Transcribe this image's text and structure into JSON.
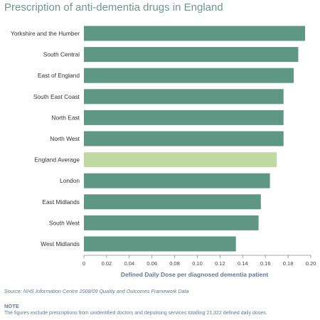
{
  "title": "Prescription of anti-dementia drugs in England",
  "source": "Source: NHS Information Centre 2008/09 Quality and Outcomes Framework Data",
  "note": {
    "heading": "NOTE",
    "text": "The figures exclude prescriptions from unidentified doctors and deputising services totalling 21,322 defined daily doses."
  },
  "colors": {
    "bar": "#5e9784",
    "highlight_bar": "#c0d8a2",
    "title": "#6b9690",
    "axis_label": "#5d7b95"
  },
  "chart_data": {
    "type": "bar",
    "orientation": "horizontal",
    "categories": [
      "Yorkshire and the Humber",
      "South Central",
      "East of England",
      "South East Coast",
      "North East",
      "North West",
      "England Average",
      "London",
      "East Midlands",
      "South West",
      "West Midlands"
    ],
    "values": [
      0.195,
      0.189,
      0.185,
      0.176,
      0.176,
      0.176,
      0.17,
      0.164,
      0.156,
      0.154,
      0.134
    ],
    "highlight_category": "England Average",
    "xlabel": "Defined Daily Dose per diagnosed dementia patient",
    "ylabel": "",
    "xlim": [
      0,
      0.2
    ],
    "xticks": [
      "0",
      "0.02",
      "0.04",
      "0.06",
      "0.08",
      "0.10",
      "0.12",
      "0.14",
      "0.16",
      "0.18",
      "0.20"
    ],
    "grid": false,
    "legend": "none"
  }
}
